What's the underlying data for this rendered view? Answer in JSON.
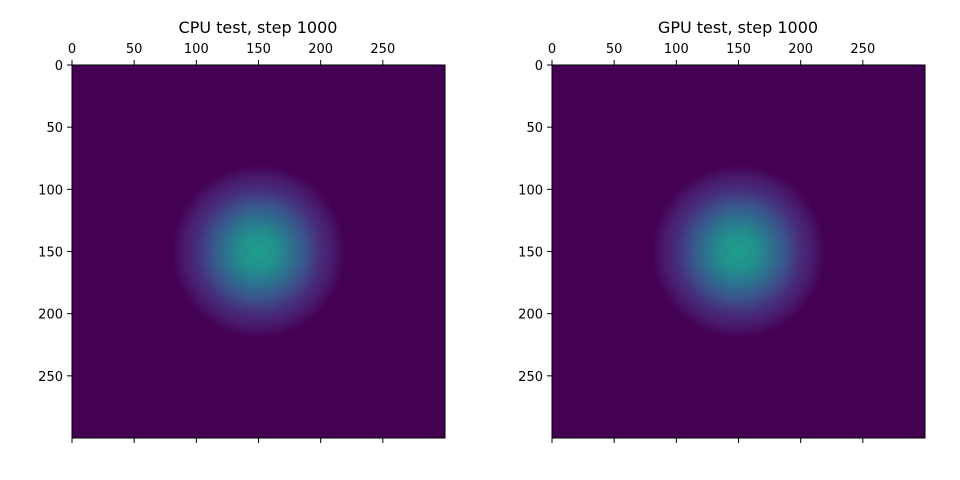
{
  "chart_data": [
    {
      "type": "heatmap",
      "title": "CPU test, step 1000",
      "xlabel": "",
      "ylabel": "",
      "xlim": [
        0,
        299
      ],
      "ylim": [
        299,
        0
      ],
      "x_ticks": [
        0,
        50,
        100,
        150,
        200,
        250
      ],
      "y_ticks": [
        0,
        50,
        100,
        150,
        200,
        250
      ],
      "x_tick_position": "top",
      "colormap": "viridis",
      "background_color": "#440154",
      "peak_color": "#1f9e89",
      "field": {
        "shape": "gaussian",
        "center_x": 150,
        "center_y": 150,
        "sigma": 24,
        "peak_value": 0.58,
        "background_value": 0.0
      },
      "grid": false,
      "legend": "none"
    },
    {
      "type": "heatmap",
      "title": "GPU test, step 1000",
      "xlabel": "",
      "ylabel": "",
      "xlim": [
        0,
        299
      ],
      "ylim": [
        299,
        0
      ],
      "x_ticks": [
        0,
        50,
        100,
        150,
        200,
        250
      ],
      "y_ticks": [
        0,
        50,
        100,
        150,
        200,
        250
      ],
      "x_tick_position": "top",
      "colormap": "viridis",
      "background_color": "#440154",
      "peak_color": "#1f9e89",
      "field": {
        "shape": "gaussian",
        "center_x": 150,
        "center_y": 150,
        "sigma": 24,
        "peak_value": 0.58,
        "background_value": 0.0
      },
      "grid": false,
      "legend": "none"
    }
  ]
}
